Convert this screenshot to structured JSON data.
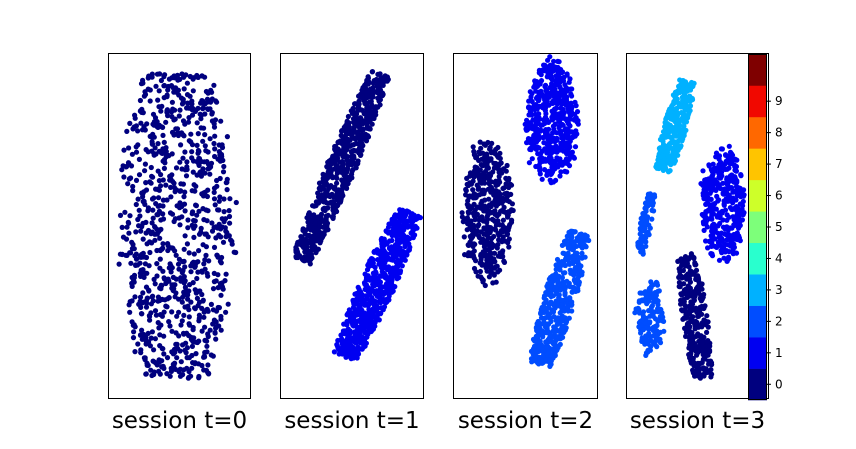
{
  "chart_data": {
    "type": "scatter",
    "panels": [
      {
        "title": "session t=0",
        "clusters": [
          {
            "class": 0,
            "shape": "spread",
            "cx": 0.48,
            "cy": 0.5,
            "rx": 0.43,
            "ry": 0.44,
            "n": 900
          }
        ]
      },
      {
        "title": "session t=1",
        "clusters": [
          {
            "class": 0,
            "shape": "band",
            "x1": 0.15,
            "y1": 0.6,
            "x2": 0.7,
            "y2": 0.06,
            "w": 0.2,
            "n": 650
          },
          {
            "class": 1,
            "shape": "band",
            "x1": 0.45,
            "y1": 0.88,
            "x2": 0.9,
            "y2": 0.46,
            "w": 0.24,
            "n": 700
          }
        ]
      },
      {
        "title": "session t=2",
        "clusters": [
          {
            "class": 0,
            "shape": "blob",
            "cx": 0.24,
            "cy": 0.46,
            "rx": 0.17,
            "ry": 0.2,
            "n": 450
          },
          {
            "class": 1,
            "shape": "blob",
            "cx": 0.68,
            "cy": 0.2,
            "rx": 0.18,
            "ry": 0.17,
            "n": 520
          },
          {
            "class": 2,
            "shape": "band",
            "x1": 0.6,
            "y1": 0.9,
            "x2": 0.87,
            "y2": 0.52,
            "w": 0.22,
            "n": 480
          }
        ]
      },
      {
        "title": "session t=3",
        "clusters": [
          {
            "class": 3,
            "shape": "band",
            "x1": 0.26,
            "y1": 0.34,
            "x2": 0.43,
            "y2": 0.08,
            "w": 0.16,
            "n": 330
          },
          {
            "class": 1,
            "shape": "blob",
            "cx": 0.68,
            "cy": 0.44,
            "rx": 0.15,
            "ry": 0.16,
            "n": 360
          },
          {
            "class": 2,
            "shape": "band",
            "x1": 0.1,
            "y1": 0.58,
            "x2": 0.18,
            "y2": 0.4,
            "w": 0.08,
            "n": 90
          },
          {
            "class": 2,
            "shape": "blob",
            "cx": 0.17,
            "cy": 0.76,
            "rx": 0.09,
            "ry": 0.11,
            "n": 150
          },
          {
            "class": 0,
            "shape": "band",
            "x1": 0.42,
            "y1": 0.58,
            "x2": 0.54,
            "y2": 0.94,
            "w": 0.18,
            "n": 320
          }
        ]
      }
    ],
    "colorbar": {
      "ticks": [
        "0",
        "1",
        "2",
        "3",
        "4",
        "5",
        "6",
        "7",
        "8",
        "9"
      ],
      "colors": [
        "#00007f",
        "#0000f1",
        "#004dff",
        "#00b1ff",
        "#29ffce",
        "#7dff7a",
        "#ceff29",
        "#ffc400",
        "#ff6800",
        "#f10800",
        "#7f0000"
      ],
      "edge_colors": [
        "#00007f",
        "#0000f1",
        "#004dff",
        "#00b1ff",
        "#29ffce",
        "#7dff7a",
        "#ceff29",
        "#ffc400",
        "#ff6800",
        "#f10800",
        "#7f0000"
      ]
    },
    "grid": false,
    "axes_ticks_visible": false
  }
}
